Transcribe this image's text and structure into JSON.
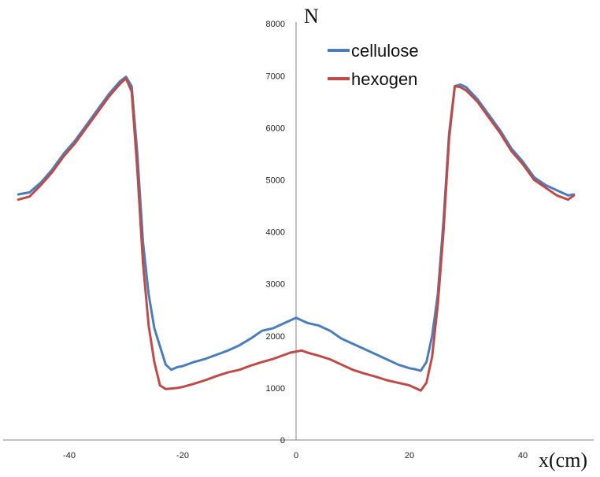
{
  "chart_data": {
    "type": "line",
    "xlabel": "x(cm)",
    "ylabel": "N",
    "xlim": [
      -50,
      52
    ],
    "ylim": [
      0,
      8000
    ],
    "x_ticks": [
      -40,
      -20,
      0,
      20,
      40
    ],
    "y_ticks": [
      0,
      1000,
      2000,
      3000,
      4000,
      5000,
      6000,
      7000,
      8000
    ],
    "legend_position": "top-center",
    "grid": false,
    "x": [
      -49,
      -47,
      -45,
      -43,
      -41,
      -39,
      -37,
      -35,
      -33,
      -31,
      -30,
      -29,
      -28,
      -27,
      -26,
      -25,
      -24,
      -23,
      -22,
      -21,
      -20,
      -18,
      -16,
      -14,
      -12,
      -10,
      -8,
      -6,
      -4,
      -2,
      -1,
      0,
      1,
      2,
      4,
      6,
      8,
      10,
      12,
      14,
      16,
      18,
      20,
      21,
      22,
      23,
      24,
      25,
      26,
      27,
      28,
      29,
      30,
      32,
      34,
      36,
      38,
      40,
      42,
      44,
      46,
      48,
      49
    ],
    "series": [
      {
        "name": "cellulose",
        "color": "#4a7ebb",
        "values": [
          4720,
          4760,
          4950,
          5200,
          5500,
          5750,
          6050,
          6350,
          6650,
          6900,
          6980,
          6800,
          5500,
          3800,
          2800,
          2150,
          1800,
          1450,
          1350,
          1400,
          1420,
          1500,
          1560,
          1640,
          1720,
          1820,
          1950,
          2100,
          2150,
          2250,
          2300,
          2350,
          2300,
          2250,
          2200,
          2100,
          1950,
          1850,
          1750,
          1650,
          1550,
          1450,
          1380,
          1360,
          1330,
          1500,
          2000,
          2800,
          4200,
          5900,
          6800,
          6830,
          6780,
          6550,
          6250,
          5950,
          5600,
          5350,
          5050,
          4900,
          4800,
          4700,
          4720
        ]
      },
      {
        "name": "hexogen",
        "color": "#be4b48",
        "values": [
          4620,
          4680,
          4900,
          5150,
          5450,
          5700,
          6000,
          6300,
          6600,
          6850,
          6950,
          6700,
          5200,
          3400,
          2200,
          1500,
          1050,
          980,
          990,
          1000,
          1020,
          1080,
          1150,
          1230,
          1300,
          1350,
          1430,
          1500,
          1560,
          1640,
          1680,
          1700,
          1720,
          1680,
          1620,
          1550,
          1450,
          1350,
          1280,
          1220,
          1150,
          1100,
          1050,
          1000,
          950,
          1100,
          1600,
          2600,
          4000,
          5800,
          6800,
          6780,
          6720,
          6500,
          6200,
          5900,
          5550,
          5300,
          5000,
          4850,
          4700,
          4620,
          4700
        ]
      }
    ]
  }
}
